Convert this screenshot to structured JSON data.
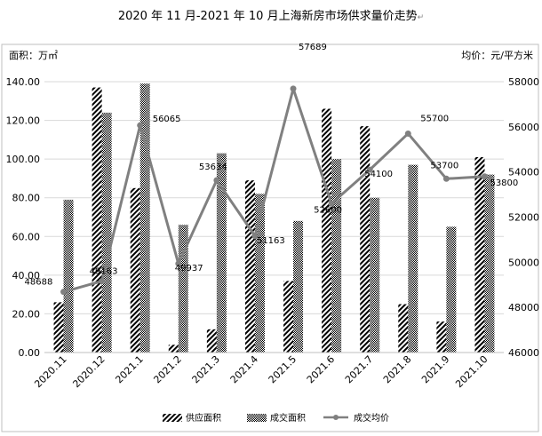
{
  "chart_data": {
    "type": "bar",
    "title": "2020 年 11 月-2021 年 10 月上海新房市场供求量价走势",
    "title_mark": "↵",
    "y_left_label": "面积：万㎡",
    "y_right_label": "均价：元/平方米",
    "categories": [
      "2020.11",
      "2020.12",
      "2021.1",
      "2021.2",
      "2021.3",
      "2021.4",
      "2021.5",
      "2021.6",
      "2021.7",
      "2021.8",
      "2021.9",
      "2021.10"
    ],
    "series": [
      {
        "name": "供应面积",
        "type": "bar",
        "axis": "left",
        "pattern": "diagonal-stripes",
        "values": [
          26,
          137,
          85,
          4,
          12,
          89,
          37,
          126,
          117,
          25,
          16,
          101
        ]
      },
      {
        "name": "成交面积",
        "type": "bar",
        "axis": "left",
        "pattern": "checker",
        "values": [
          79,
          124,
          139,
          66,
          103,
          82,
          68,
          100,
          80,
          97,
          65,
          92
        ]
      },
      {
        "name": "成交均价",
        "type": "line",
        "axis": "right",
        "color": "#808080",
        "values": [
          48688,
          49163,
          56065,
          49937,
          53634,
          51163,
          57689,
          52600,
          54100,
          55700,
          53700,
          53800
        ],
        "labels": [
          "48688",
          "49163",
          "56065",
          "49937",
          "53634",
          "51163",
          "57689",
          "52600",
          "54100",
          "55700",
          "53700",
          "53800"
        ]
      }
    ],
    "y_left": {
      "min": 0,
      "max": 140,
      "step": 20,
      "ticks": [
        "0.00",
        "20.00",
        "40.00",
        "60.00",
        "80.00",
        "100.00",
        "120.00",
        "140.00"
      ]
    },
    "y_right": {
      "min": 46000,
      "max": 58000,
      "step": 2000,
      "ticks": [
        "46000",
        "48000",
        "50000",
        "52000",
        "54000",
        "56000",
        "58000"
      ]
    },
    "grid": true,
    "legend_position": "bottom"
  }
}
